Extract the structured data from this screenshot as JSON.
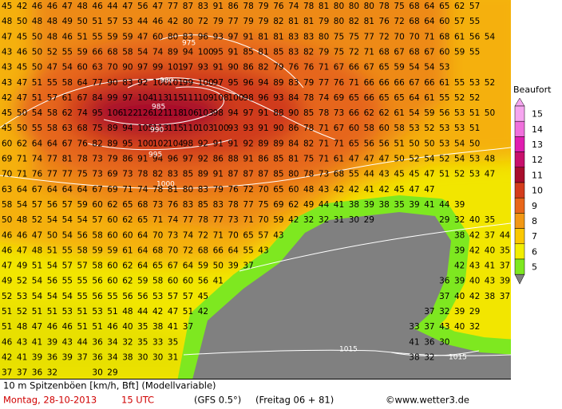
{
  "map": {
    "grid_rows": [
      [
        45,
        42,
        46,
        46,
        47,
        48,
        46,
        44,
        47,
        56,
        47,
        77,
        87,
        83,
        91,
        86,
        78,
        79,
        76,
        74,
        78,
        81,
        80,
        80,
        80,
        78,
        75,
        68,
        64,
        65,
        62,
        57
      ],
      [
        48,
        50,
        48,
        48,
        49,
        50,
        51,
        57,
        53,
        44,
        46,
        42,
        80,
        72,
        79,
        77,
        79,
        79,
        82,
        81,
        81,
        79,
        80,
        82,
        81,
        76,
        72,
        68,
        64,
        60,
        57,
        55
      ],
      [
        47,
        45,
        50,
        48,
        46,
        51,
        55,
        59,
        59,
        47,
        60,
        80,
        83,
        96,
        93,
        97,
        91,
        81,
        81,
        83,
        83,
        80,
        75,
        75,
        77,
        72,
        70,
        70,
        71,
        68,
        61,
        56,
        54
      ],
      [
        43,
        46,
        50,
        52,
        55,
        59,
        66,
        68,
        58,
        54,
        74,
        89,
        94,
        100,
        95,
        91,
        85,
        81,
        85,
        83,
        82,
        79,
        75,
        72,
        71,
        68,
        67,
        68,
        67,
        60,
        59,
        55
      ],
      [
        43,
        45,
        50,
        47,
        54,
        60,
        63,
        70,
        90,
        97,
        99,
        101,
        97,
        93,
        91,
        90,
        86,
        82,
        79,
        76,
        76,
        71,
        67,
        66,
        67,
        65,
        59,
        54,
        54,
        53
      ],
      [
        43,
        47,
        51,
        55,
        58,
        64,
        77,
        90,
        83,
        92,
        100,
        101,
        99,
        100,
        97,
        95,
        96,
        94,
        89,
        83,
        79,
        77,
        76,
        71,
        66,
        66,
        66,
        67,
        66,
        61,
        55,
        53,
        52
      ],
      [
        42,
        47,
        51,
        57,
        61,
        67,
        84,
        99,
        97,
        104,
        113,
        115,
        111,
        109,
        108,
        100,
        98,
        96,
        93,
        84,
        78,
        74,
        69,
        65,
        66,
        65,
        65,
        64,
        61,
        55,
        52,
        52
      ],
      [
        45,
        50,
        54,
        58,
        62,
        74,
        95,
        106,
        122,
        126,
        121,
        118,
        106,
        103,
        98,
        94,
        97,
        91,
        88,
        90,
        85,
        78,
        73,
        66,
        62,
        62,
        61,
        54,
        59,
        56,
        53,
        51,
        50
      ],
      [
        45,
        50,
        55,
        58,
        63,
        68,
        75,
        89,
        94,
        105,
        113,
        115,
        110,
        103,
        100,
        93,
        93,
        91,
        90,
        86,
        78,
        71,
        67,
        60,
        58,
        60,
        58,
        53,
        52,
        53,
        53,
        51
      ],
      [
        60,
        62,
        64,
        64,
        67,
        76,
        82,
        89,
        95,
        100,
        102,
        104,
        98,
        92,
        91,
        91,
        92,
        89,
        89,
        84,
        82,
        71,
        71,
        65,
        56,
        56,
        51,
        50,
        50,
        53,
        54,
        50
      ],
      [
        69,
        71,
        74,
        77,
        81,
        78,
        73,
        79,
        86,
        91,
        94,
        96,
        97,
        92,
        86,
        88,
        91,
        86,
        85,
        81,
        75,
        71,
        61,
        47,
        47,
        47,
        50,
        52,
        54,
        52,
        54,
        53,
        48
      ],
      [
        70,
        71,
        76,
        77,
        77,
        75,
        73,
        69,
        73,
        78,
        82,
        83,
        85,
        89,
        91,
        87,
        87,
        87,
        85,
        80,
        78,
        73,
        68,
        55,
        44,
        43,
        45,
        45,
        47,
        51,
        52,
        53,
        47
      ],
      [
        63,
        64,
        67,
        64,
        64,
        64,
        67,
        69,
        71,
        74,
        78,
        81,
        80,
        83,
        79,
        76,
        72,
        70,
        65,
        60,
        48,
        43,
        42,
        42,
        41,
        42,
        45,
        47,
        47
      ],
      [
        58,
        54,
        57,
        56,
        57,
        59,
        60,
        62,
        65,
        68,
        73,
        76,
        83,
        85,
        83,
        78,
        77,
        75,
        69,
        62,
        49,
        44,
        41,
        38,
        39,
        38,
        35,
        39,
        41,
        44,
        39
      ],
      [
        50,
        48,
        52,
        54,
        54,
        54,
        57,
        60,
        62,
        65,
        71,
        74,
        77,
        78,
        77,
        73,
        71,
        70,
        59,
        42,
        32,
        32,
        31,
        30,
        29,
        null,
        null,
        null,
        null,
        29,
        32,
        40,
        35
      ],
      [
        46,
        46,
        47,
        50,
        54,
        56,
        58,
        60,
        60,
        64,
        70,
        73,
        74,
        72,
        71,
        70,
        65,
        57,
        43,
        null,
        null,
        null,
        null,
        null,
        null,
        null,
        null,
        null,
        null,
        null,
        38,
        42,
        37,
        44
      ],
      [
        46,
        47,
        48,
        51,
        55,
        58,
        59,
        59,
        61,
        64,
        68,
        70,
        72,
        68,
        66,
        64,
        55,
        43,
        null,
        null,
        null,
        null,
        null,
        null,
        null,
        null,
        null,
        null,
        null,
        null,
        39,
        42,
        40,
        35
      ],
      [
        47,
        49,
        51,
        54,
        57,
        57,
        58,
        60,
        62,
        64,
        65,
        67,
        64,
        59,
        50,
        39,
        37,
        null,
        null,
        null,
        null,
        null,
        null,
        null,
        null,
        null,
        null,
        null,
        null,
        null,
        42,
        43,
        41,
        37
      ],
      [
        49,
        52,
        54,
        56,
        55,
        55,
        56,
        60,
        62,
        59,
        58,
        60,
        60,
        56,
        41,
        null,
        null,
        null,
        null,
        null,
        null,
        null,
        null,
        null,
        null,
        null,
        null,
        null,
        null,
        36,
        39,
        40,
        43,
        39
      ],
      [
        52,
        53,
        54,
        54,
        54,
        55,
        56,
        55,
        56,
        56,
        53,
        57,
        57,
        45,
        null,
        null,
        null,
        null,
        null,
        null,
        null,
        null,
        null,
        null,
        null,
        null,
        null,
        null,
        null,
        37,
        40,
        42,
        38,
        37
      ],
      [
        51,
        52,
        51,
        51,
        53,
        51,
        53,
        51,
        48,
        44,
        42,
        47,
        51,
        42,
        null,
        null,
        null,
        null,
        null,
        null,
        null,
        null,
        null,
        null,
        null,
        null,
        null,
        null,
        37,
        32,
        39,
        29
      ],
      [
        51,
        48,
        47,
        46,
        46,
        51,
        51,
        46,
        40,
        35,
        38,
        41,
        37,
        null,
        null,
        null,
        null,
        null,
        null,
        null,
        null,
        null,
        null,
        null,
        null,
        null,
        null,
        33,
        37,
        43,
        40,
        32
      ],
      [
        46,
        43,
        41,
        39,
        43,
        44,
        36,
        34,
        32,
        35,
        33,
        35,
        null,
        null,
        null,
        null,
        null,
        null,
        null,
        null,
        null,
        null,
        null,
        null,
        null,
        null,
        null,
        41,
        36,
        30
      ],
      [
        42,
        41,
        39,
        36,
        39,
        37,
        36,
        34,
        38,
        30,
        30,
        31,
        null,
        null,
        null,
        null,
        null,
        null,
        null,
        null,
        null,
        null,
        null,
        null,
        null,
        null,
        null,
        38,
        32
      ],
      [
        37,
        37,
        36,
        32,
        null,
        null,
        30,
        29
      ]
    ],
    "isobar_labels": [
      "975",
      "980",
      "985",
      "990",
      "995",
      "1000",
      "1015",
      "1015"
    ]
  },
  "legend": {
    "title": "Beaufort",
    "levels": [
      {
        "label": 15,
        "color": "#f6a6f0"
      },
      {
        "label": 14,
        "color": "#f070dc"
      },
      {
        "label": 13,
        "color": "#e01eb0"
      },
      {
        "label": 12,
        "color": "#c8106c"
      },
      {
        "label": 11,
        "color": "#a80e2c"
      },
      {
        "label": 10,
        "color": "#d43c1c"
      },
      {
        "label": 9,
        "color": "#e8661a"
      },
      {
        "label": 8,
        "color": "#f29814"
      },
      {
        "label": 7,
        "color": "#fac800"
      },
      {
        "label": 6,
        "color": "#f2ee00"
      },
      {
        "label": 5,
        "color": "#7ee820"
      }
    ]
  },
  "footer": {
    "line1": "10 m Spitzenböen [km/h, Bft] (Modellvariable)",
    "date": "Montag, 28-10-2013",
    "time": "15 UTC",
    "model": "(GFS 0.5°)",
    "run": "(Freitag 06 + 81)",
    "credit": "©www.wetter3.de"
  }
}
